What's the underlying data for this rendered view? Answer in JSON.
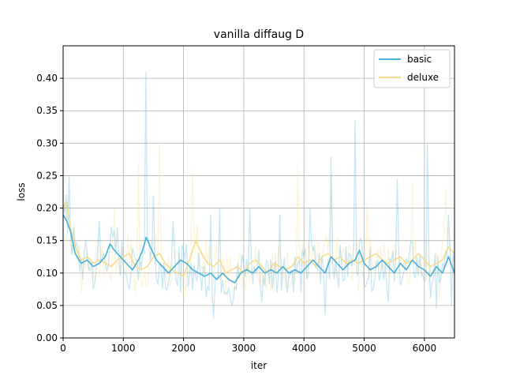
{
  "chart_data": {
    "type": "line",
    "title": "vanilla diffaug D",
    "xlabel": "iter",
    "ylabel": "loss",
    "xlim": [
      0,
      6500
    ],
    "ylim": [
      0.0,
      0.45
    ],
    "xticks": [
      0,
      1000,
      2000,
      3000,
      4000,
      5000,
      6000
    ],
    "yticks": [
      0.0,
      0.05,
      0.1,
      0.15,
      0.2,
      0.25,
      0.3,
      0.35,
      0.4
    ],
    "xtick_labels": [
      "0",
      "1000",
      "2000",
      "3000",
      "4000",
      "5000",
      "6000"
    ],
    "ytick_labels": [
      "0.00",
      "0.05",
      "0.10",
      "0.15",
      "0.20",
      "0.25",
      "0.30",
      "0.35",
      "0.40"
    ],
    "grid": true,
    "legend_position": "top-right",
    "series": [
      {
        "name": "basic",
        "color": "#4ab0d9",
        "smoothed": [
          [
            0,
            0.19
          ],
          [
            60,
            0.18
          ],
          [
            120,
            0.165
          ],
          [
            200,
            0.13
          ],
          [
            300,
            0.115
          ],
          [
            400,
            0.12
          ],
          [
            500,
            0.11
          ],
          [
            600,
            0.115
          ],
          [
            700,
            0.125
          ],
          [
            780,
            0.145
          ],
          [
            850,
            0.135
          ],
          [
            950,
            0.125
          ],
          [
            1050,
            0.115
          ],
          [
            1150,
            0.105
          ],
          [
            1250,
            0.12
          ],
          [
            1320,
            0.135
          ],
          [
            1380,
            0.155
          ],
          [
            1450,
            0.14
          ],
          [
            1550,
            0.12
          ],
          [
            1650,
            0.11
          ],
          [
            1750,
            0.1
          ],
          [
            1850,
            0.11
          ],
          [
            1950,
            0.12
          ],
          [
            2050,
            0.115
          ],
          [
            2150,
            0.105
          ],
          [
            2250,
            0.1
          ],
          [
            2350,
            0.095
          ],
          [
            2450,
            0.1
          ],
          [
            2550,
            0.09
          ],
          [
            2650,
            0.1
          ],
          [
            2750,
            0.09
          ],
          [
            2850,
            0.085
          ],
          [
            2950,
            0.1
          ],
          [
            3050,
            0.105
          ],
          [
            3150,
            0.1
          ],
          [
            3250,
            0.11
          ],
          [
            3350,
            0.1
          ],
          [
            3450,
            0.105
          ],
          [
            3550,
            0.1
          ],
          [
            3650,
            0.11
          ],
          [
            3750,
            0.1
          ],
          [
            3850,
            0.105
          ],
          [
            3950,
            0.1
          ],
          [
            4050,
            0.11
          ],
          [
            4150,
            0.12
          ],
          [
            4250,
            0.11
          ],
          [
            4350,
            0.1
          ],
          [
            4450,
            0.125
          ],
          [
            4550,
            0.115
          ],
          [
            4650,
            0.105
          ],
          [
            4750,
            0.115
          ],
          [
            4850,
            0.12
          ],
          [
            4920,
            0.135
          ],
          [
            5000,
            0.115
          ],
          [
            5100,
            0.105
          ],
          [
            5200,
            0.11
          ],
          [
            5300,
            0.12
          ],
          [
            5400,
            0.11
          ],
          [
            5500,
            0.1
          ],
          [
            5600,
            0.115
          ],
          [
            5700,
            0.105
          ],
          [
            5800,
            0.12
          ],
          [
            5900,
            0.11
          ],
          [
            6000,
            0.105
          ],
          [
            6100,
            0.095
          ],
          [
            6200,
            0.11
          ],
          [
            6300,
            0.1
          ],
          [
            6400,
            0.125
          ],
          [
            6500,
            0.1
          ]
        ],
        "raw_peaks": [
          [
            40,
            0.22
          ],
          [
            110,
            0.25
          ],
          [
            600,
            0.18
          ],
          [
            900,
            0.17
          ],
          [
            1370,
            0.41
          ],
          [
            1500,
            0.22
          ],
          [
            1820,
            0.18
          ],
          [
            2450,
            0.19
          ],
          [
            2600,
            0.2
          ],
          [
            3100,
            0.2
          ],
          [
            3600,
            0.19
          ],
          [
            4100,
            0.2
          ],
          [
            4450,
            0.28
          ],
          [
            4850,
            0.335
          ],
          [
            5550,
            0.245
          ],
          [
            6050,
            0.3
          ],
          [
            6400,
            0.19
          ]
        ],
        "raw_troughs": [
          [
            500,
            0.075
          ],
          [
            1100,
            0.075
          ],
          [
            1950,
            0.07
          ],
          [
            2500,
            0.03
          ],
          [
            2800,
            0.05
          ],
          [
            3300,
            0.055
          ],
          [
            4350,
            0.035
          ],
          [
            5400,
            0.055
          ],
          [
            6200,
            0.045
          ],
          [
            6450,
            0.05
          ]
        ]
      },
      {
        "name": "deluxe",
        "color": "#f5dc8c",
        "smoothed": [
          [
            0,
            0.2
          ],
          [
            60,
            0.21
          ],
          [
            120,
            0.17
          ],
          [
            200,
            0.14
          ],
          [
            300,
            0.12
          ],
          [
            400,
            0.125
          ],
          [
            500,
            0.115
          ],
          [
            600,
            0.12
          ],
          [
            700,
            0.115
          ],
          [
            800,
            0.11
          ],
          [
            900,
            0.12
          ],
          [
            1000,
            0.125
          ],
          [
            1100,
            0.13
          ],
          [
            1200,
            0.11
          ],
          [
            1300,
            0.105
          ],
          [
            1400,
            0.11
          ],
          [
            1500,
            0.125
          ],
          [
            1600,
            0.13
          ],
          [
            1700,
            0.115
          ],
          [
            1800,
            0.105
          ],
          [
            1900,
            0.1
          ],
          [
            2000,
            0.095
          ],
          [
            2100,
            0.12
          ],
          [
            2200,
            0.15
          ],
          [
            2300,
            0.13
          ],
          [
            2400,
            0.115
          ],
          [
            2500,
            0.11
          ],
          [
            2600,
            0.12
          ],
          [
            2700,
            0.1
          ],
          [
            2800,
            0.105
          ],
          [
            2900,
            0.11
          ],
          [
            3000,
            0.1
          ],
          [
            3100,
            0.115
          ],
          [
            3200,
            0.12
          ],
          [
            3300,
            0.11
          ],
          [
            3400,
            0.1
          ],
          [
            3500,
            0.115
          ],
          [
            3600,
            0.11
          ],
          [
            3700,
            0.105
          ],
          [
            3800,
            0.11
          ],
          [
            3900,
            0.125
          ],
          [
            4000,
            0.115
          ],
          [
            4100,
            0.12
          ],
          [
            4200,
            0.11
          ],
          [
            4300,
            0.125
          ],
          [
            4400,
            0.13
          ],
          [
            4500,
            0.12
          ],
          [
            4600,
            0.125
          ],
          [
            4700,
            0.115
          ],
          [
            4800,
            0.12
          ],
          [
            4900,
            0.115
          ],
          [
            5000,
            0.12
          ],
          [
            5100,
            0.125
          ],
          [
            5200,
            0.13
          ],
          [
            5300,
            0.12
          ],
          [
            5400,
            0.115
          ],
          [
            5500,
            0.12
          ],
          [
            5600,
            0.125
          ],
          [
            5700,
            0.115
          ],
          [
            5800,
            0.12
          ],
          [
            5900,
            0.13
          ],
          [
            6000,
            0.12
          ],
          [
            6100,
            0.11
          ],
          [
            6200,
            0.115
          ],
          [
            6300,
            0.12
          ],
          [
            6400,
            0.14
          ],
          [
            6500,
            0.13
          ]
        ],
        "raw_peaks": [
          [
            80,
            0.22
          ],
          [
            850,
            0.2
          ],
          [
            1250,
            0.27
          ],
          [
            1600,
            0.3
          ],
          [
            2150,
            0.26
          ],
          [
            2700,
            0.2
          ],
          [
            3900,
            0.27
          ],
          [
            4450,
            0.25
          ],
          [
            5050,
            0.21
          ],
          [
            5800,
            0.24
          ],
          [
            6350,
            0.23
          ]
        ],
        "raw_troughs": [
          [
            300,
            0.07
          ],
          [
            1200,
            0.07
          ],
          [
            2000,
            0.06
          ],
          [
            2700,
            0.065
          ],
          [
            3500,
            0.07
          ],
          [
            4900,
            0.07
          ],
          [
            6250,
            0.06
          ]
        ]
      }
    ]
  }
}
